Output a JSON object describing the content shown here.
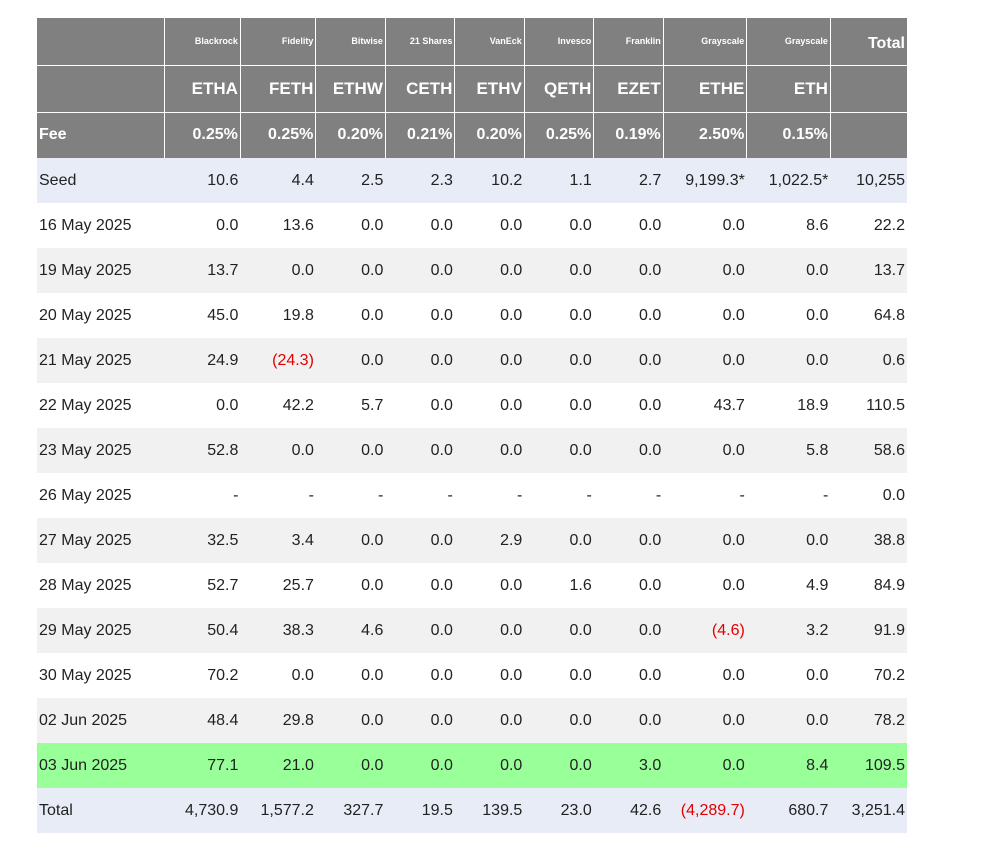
{
  "header": {
    "issuers": [
      "Blackrock",
      "Fidelity",
      "Bitwise",
      "21 Shares",
      "VanEck",
      "Invesco",
      "Franklin",
      "Grayscale",
      "Grayscale"
    ],
    "total_label": "Total",
    "tickers": [
      "ETHA",
      "FETH",
      "ETHW",
      "CETH",
      "ETHV",
      "QETH",
      "EZET",
      "ETHE",
      "ETH"
    ],
    "fee_label": "Fee",
    "fees": [
      "0.25%",
      "0.25%",
      "0.20%",
      "0.21%",
      "0.20%",
      "0.25%",
      "0.19%",
      "2.50%",
      "0.15%"
    ]
  },
  "rows": [
    {
      "label": "Seed",
      "values": [
        "10.6",
        "4.4",
        "2.5",
        "2.3",
        "10.2",
        "1.1",
        "2.7",
        "9,199.3*",
        "1,022.5*"
      ],
      "total": "10,255"
    },
    {
      "label": "16 May 2025",
      "values": [
        "0.0",
        "13.6",
        "0.0",
        "0.0",
        "0.0",
        "0.0",
        "0.0",
        "0.0",
        "8.6"
      ],
      "total": "22.2"
    },
    {
      "label": "19 May 2025",
      "values": [
        "13.7",
        "0.0",
        "0.0",
        "0.0",
        "0.0",
        "0.0",
        "0.0",
        "0.0",
        "0.0"
      ],
      "total": "13.7"
    },
    {
      "label": "20 May 2025",
      "values": [
        "45.0",
        "19.8",
        "0.0",
        "0.0",
        "0.0",
        "0.0",
        "0.0",
        "0.0",
        "0.0"
      ],
      "total": "64.8"
    },
    {
      "label": "21 May 2025",
      "values": [
        "24.9",
        "(24.3)",
        "0.0",
        "0.0",
        "0.0",
        "0.0",
        "0.0",
        "0.0",
        "0.0"
      ],
      "total": "0.6"
    },
    {
      "label": "22 May 2025",
      "values": [
        "0.0",
        "42.2",
        "5.7",
        "0.0",
        "0.0",
        "0.0",
        "0.0",
        "43.7",
        "18.9"
      ],
      "total": "110.5"
    },
    {
      "label": "23 May 2025",
      "values": [
        "52.8",
        "0.0",
        "0.0",
        "0.0",
        "0.0",
        "0.0",
        "0.0",
        "0.0",
        "5.8"
      ],
      "total": "58.6"
    },
    {
      "label": "26 May 2025",
      "values": [
        "-",
        "-",
        "-",
        "-",
        "-",
        "-",
        "-",
        "-",
        "-"
      ],
      "total": "0.0"
    },
    {
      "label": "27 May 2025",
      "values": [
        "32.5",
        "3.4",
        "0.0",
        "0.0",
        "2.9",
        "0.0",
        "0.0",
        "0.0",
        "0.0"
      ],
      "total": "38.8"
    },
    {
      "label": "28 May 2025",
      "values": [
        "52.7",
        "25.7",
        "0.0",
        "0.0",
        "0.0",
        "1.6",
        "0.0",
        "0.0",
        "4.9"
      ],
      "total": "84.9"
    },
    {
      "label": "29 May 2025",
      "values": [
        "50.4",
        "38.3",
        "4.6",
        "0.0",
        "0.0",
        "0.0",
        "0.0",
        "(4.6)",
        "3.2"
      ],
      "total": "91.9"
    },
    {
      "label": "30 May 2025",
      "values": [
        "70.2",
        "0.0",
        "0.0",
        "0.0",
        "0.0",
        "0.0",
        "0.0",
        "0.0",
        "0.0"
      ],
      "total": "70.2"
    },
    {
      "label": "02 Jun 2025",
      "values": [
        "48.4",
        "29.8",
        "0.0",
        "0.0",
        "0.0",
        "0.0",
        "0.0",
        "0.0",
        "0.0"
      ],
      "total": "78.2"
    },
    {
      "label": "03 Jun 2025",
      "values": [
        "77.1",
        "21.0",
        "0.0",
        "0.0",
        "0.0",
        "0.0",
        "3.0",
        "0.0",
        "8.4"
      ],
      "total": "109.5"
    },
    {
      "label": "Total",
      "values": [
        "4,730.9",
        "1,577.2",
        "327.7",
        "19.5",
        "139.5",
        "23.0",
        "42.6",
        "(4,289.7)",
        "680.7"
      ],
      "total": "3,251.4"
    }
  ],
  "colors": {
    "header_bg": "#808080",
    "highlight_row": "#99ff99",
    "negative_text": "#e00000"
  }
}
